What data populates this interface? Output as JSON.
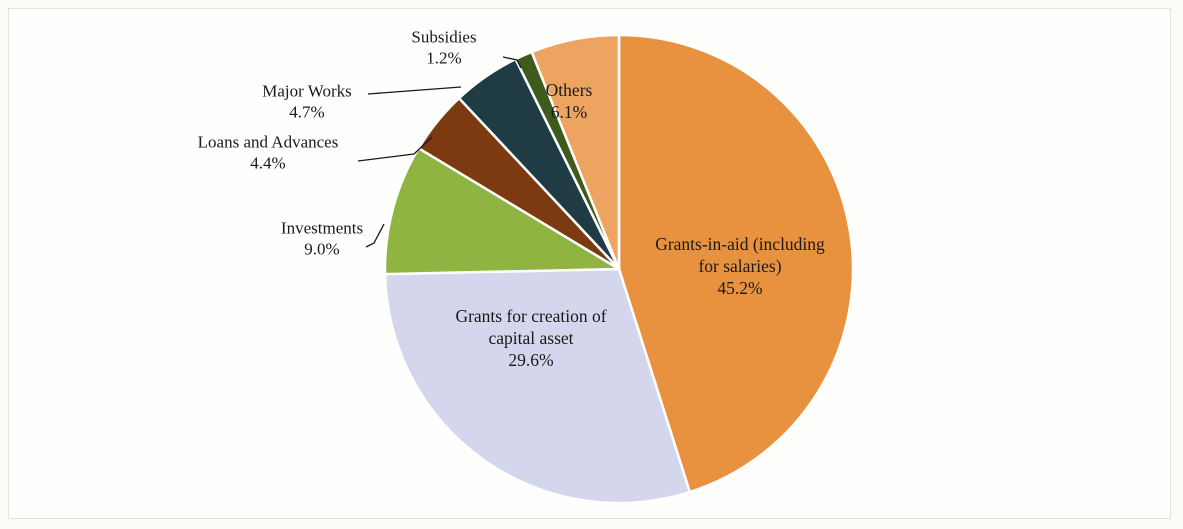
{
  "chart_data": {
    "type": "pie",
    "slices": [
      {
        "label": "Grants-in-aid (including for salaries)",
        "label_lines": [
          "Grants-in-aid (including",
          "for salaries)"
        ],
        "percent_text": "45.2%",
        "value": 45.2,
        "color": "#e8913f"
      },
      {
        "label": "Grants for creation of capital asset",
        "label_lines": [
          "Grants for creation of",
          "capital asset"
        ],
        "percent_text": "29.6%",
        "value": 29.6,
        "color": "#d3d6ec"
      },
      {
        "label": "Investments",
        "label_lines": [
          "Investments"
        ],
        "percent_text": "9.0%",
        "value": 9.0,
        "color": "#8fb441"
      },
      {
        "label": "Loans and Advances",
        "label_lines": [
          "Loans and Advances"
        ],
        "percent_text": "4.4%",
        "value": 4.4,
        "color": "#7b3a10"
      },
      {
        "label": "Major Works",
        "label_lines": [
          "Major Works"
        ],
        "percent_text": "4.7%",
        "value": 4.7,
        "color": "#1f3b44"
      },
      {
        "label": "Subsidies",
        "label_lines": [
          "Subsidies"
        ],
        "percent_text": "1.2%",
        "value": 1.2,
        "color": "#3f5b1c"
      },
      {
        "label": "Others",
        "label_lines": [
          "Others"
        ],
        "percent_text": "6.1%",
        "value": 6.1,
        "color": "#eda461"
      }
    ]
  }
}
